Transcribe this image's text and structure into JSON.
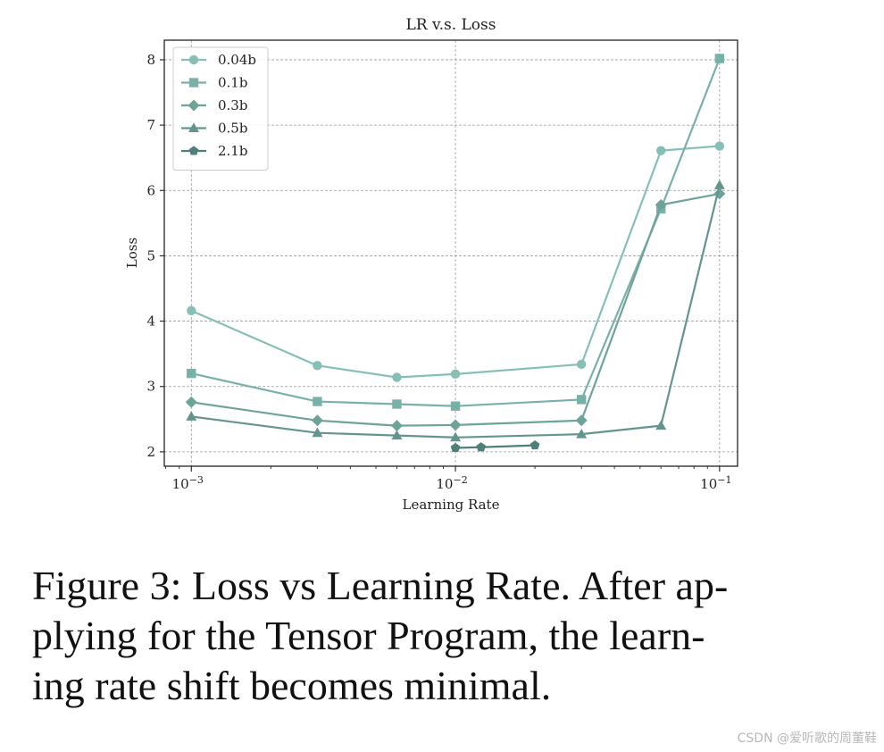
{
  "chart_data": {
    "type": "line",
    "title": "LR v.s. Loss",
    "xlabel": "Learning Rate",
    "ylabel": "Loss",
    "xscale": "log",
    "xlim": [
      0.00079,
      0.117
    ],
    "ylim": [
      1.78,
      8.3
    ],
    "xticks": [
      {
        "value": 0.001,
        "base": "10",
        "exp": "−3"
      },
      {
        "value": 0.01,
        "base": "10",
        "exp": "−2"
      },
      {
        "value": 0.1,
        "base": "10",
        "exp": "−1"
      }
    ],
    "yticks": [
      {
        "value": 2,
        "label": "2"
      },
      {
        "value": 3,
        "label": "3"
      },
      {
        "value": 4,
        "label": "4"
      },
      {
        "value": 5,
        "label": "5"
      },
      {
        "value": 6,
        "label": "6"
      },
      {
        "value": 7,
        "label": "7"
      },
      {
        "value": 8,
        "label": "8"
      }
    ],
    "grid": true,
    "legend_position": "top-left",
    "series": [
      {
        "name": "0.04b",
        "marker": "circle",
        "color": "#86bfb6",
        "x": [
          0.001,
          0.003,
          0.006,
          0.01,
          0.03,
          0.06,
          0.1
        ],
        "y": [
          4.16,
          3.32,
          3.14,
          3.19,
          3.34,
          6.61,
          6.68
        ]
      },
      {
        "name": "0.1b",
        "marker": "square",
        "color": "#79b1a9",
        "x": [
          0.001,
          0.003,
          0.006,
          0.01,
          0.03,
          0.06,
          0.1
        ],
        "y": [
          3.2,
          2.77,
          2.73,
          2.7,
          2.8,
          5.72,
          8.02
        ]
      },
      {
        "name": "0.3b",
        "marker": "diamond",
        "color": "#6ea39a",
        "x": [
          0.001,
          0.003,
          0.006,
          0.01,
          0.03,
          0.06,
          0.1
        ],
        "y": [
          2.76,
          2.48,
          2.4,
          2.41,
          2.48,
          5.78,
          5.95
        ]
      },
      {
        "name": "0.5b",
        "marker": "triangle",
        "color": "#64948e",
        "x": [
          0.001,
          0.003,
          0.006,
          0.01,
          0.03,
          0.06,
          0.1
        ],
        "y": [
          2.54,
          2.29,
          2.25,
          2.22,
          2.27,
          2.4,
          6.08
        ]
      },
      {
        "name": "2.1b",
        "marker": "pentagon",
        "color": "#4e7f79",
        "x": [
          0.01,
          0.0125,
          0.02
        ],
        "y": [
          2.06,
          2.07,
          2.1
        ]
      }
    ]
  },
  "caption": {
    "lines": [
      "Figure 3: Loss vs Learning Rate. After ap-",
      "plying for the Tensor Program, the learn-",
      "ing rate shift becomes minimal."
    ]
  },
  "watermark": "CSDN @爱听歌的周董鞋"
}
